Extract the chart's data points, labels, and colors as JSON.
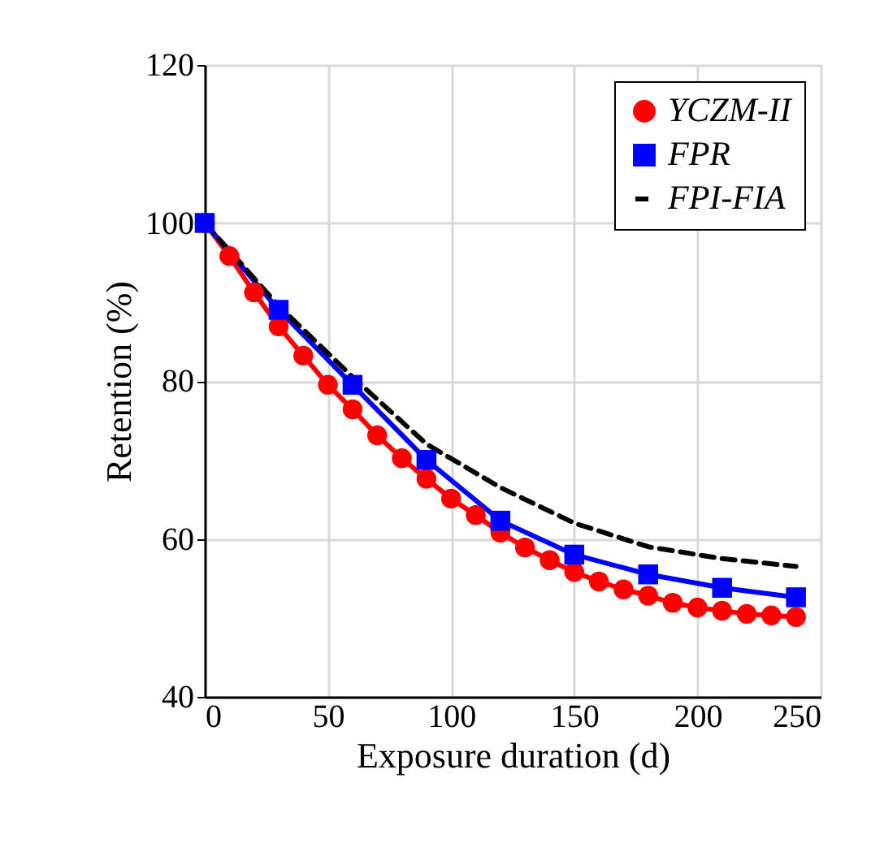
{
  "chart_data": {
    "type": "line",
    "xlabel": "Exposure duration (d)",
    "ylabel": "Retention (%)",
    "xlim": [
      0,
      250
    ],
    "xticks": [
      0,
      50,
      100,
      150,
      200,
      250
    ],
    "ylim": [
      40,
      120
    ],
    "yticks": [
      40,
      60,
      80,
      100,
      120
    ],
    "grid": true,
    "legend": "top right",
    "series": [
      {
        "name": "YCZM-II",
        "color": "#ff0000",
        "marker": "circle",
        "line_style": "solid",
        "x": [
          0,
          10,
          20,
          30,
          40,
          50,
          60,
          70,
          80,
          90,
          100,
          110,
          120,
          130,
          140,
          150,
          160,
          170,
          180,
          190,
          200,
          210,
          220,
          230,
          240
        ],
        "values": [
          100,
          95.8,
          91.2,
          86.9,
          83.2,
          79.5,
          76.4,
          73.1,
          70.2,
          67.6,
          65.1,
          63,
          60.8,
          58.9,
          57.3,
          55.8,
          54.6,
          53.6,
          52.8,
          51.9,
          51.3,
          50.9,
          50.5,
          50.3,
          50.1
        ]
      },
      {
        "name": "FPR",
        "color": "#0000ff",
        "marker": "square",
        "line_style": "solid",
        "x": [
          0,
          30,
          60,
          90,
          120,
          150,
          180,
          210,
          240
        ],
        "values": [
          100,
          89,
          79.5,
          70,
          62.3,
          58,
          55.5,
          53.8,
          52.6
        ]
      },
      {
        "name": "FPI-FIA",
        "color": "#000000",
        "marker": "none",
        "line_style": "dashed",
        "x": [
          0,
          30,
          60,
          90,
          120,
          150,
          180,
          210,
          240
        ],
        "values": [
          100,
          89.5,
          80.5,
          72,
          66.5,
          62,
          59,
          57.5,
          56.5
        ]
      }
    ]
  }
}
